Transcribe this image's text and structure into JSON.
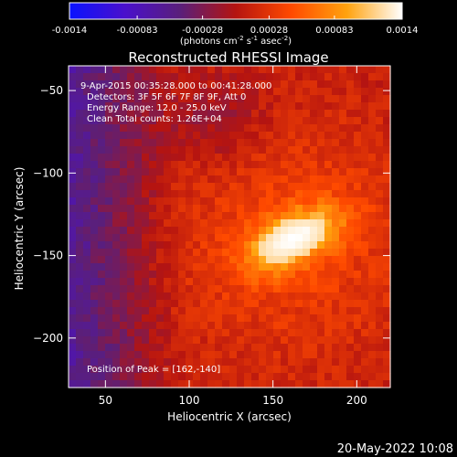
{
  "chart_data": {
    "type": "heatmap",
    "title": "Reconstructed RHESSI Image",
    "xlabel": "Heliocentric X (arcsec)",
    "ylabel": "Heliocentric Y (arcsec)",
    "xlim": [
      28,
      220
    ],
    "ylim": [
      -230,
      -35
    ],
    "x_ticks": [
      50,
      100,
      150,
      200
    ],
    "y_ticks": [
      -50,
      -100,
      -150,
      -200
    ],
    "colorbar": {
      "vmin": -0.0014,
      "vmax": 0.0014,
      "tick_values": [
        -0.0014,
        -0.00083,
        -0.00028,
        0.00028,
        0.00083,
        0.0014
      ],
      "tick_labels": [
        "-0.0014",
        "-0.00083",
        "-0.00028",
        "0.00028",
        "0.00083",
        "0.0014"
      ],
      "unit_parts": [
        "(photons cm",
        "-2",
        " s",
        "-1",
        " asec",
        "-2",
        ")"
      ],
      "colors": [
        "#0a12ff",
        "#4a10cc",
        "#5a1f7a",
        "#b51410",
        "#ff4a00",
        "#ffa20e",
        "#ffffff"
      ]
    },
    "annotations": {
      "time_range": "9-Apr-2015 00:35:28.000 to 00:41:28.000",
      "detectors": "Detectors: 3F 5F 6F 7F 8F 9F, Att 0",
      "energy": "Energy Range: 12.0 - 25.0 keV",
      "clean": "Clean    Total counts: 1.26E+04",
      "peak": "Position of Peak = [162,-140]"
    },
    "peak": [
      162,
      -140
    ]
  },
  "timestamp": "20-May-2022 10:08"
}
